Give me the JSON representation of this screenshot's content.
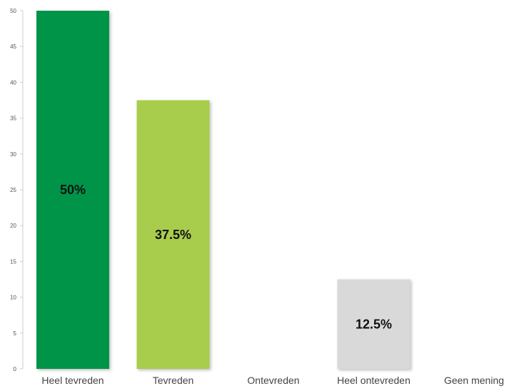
{
  "chart_data": {
    "type": "bar",
    "categories": [
      "Heel tevreden",
      "Tevreden",
      "Ontevreden",
      "Heel ontevreden",
      "Geen mening"
    ],
    "values": [
      50,
      37.5,
      0,
      12.5,
      0
    ],
    "data_labels": [
      "50%",
      "37.5%",
      "",
      "12.5%",
      ""
    ],
    "colors": [
      "#00944a",
      "#a8cd4e",
      "#a8cd4e",
      "#d9d9d9",
      "#d9d9d9"
    ],
    "title": "",
    "xlabel": "",
    "ylabel": "",
    "ylim": [
      0,
      50
    ],
    "yticks": [
      0,
      5,
      10,
      15,
      20,
      25,
      30,
      35,
      40,
      45,
      50
    ],
    "grid": false,
    "legend": "none"
  }
}
